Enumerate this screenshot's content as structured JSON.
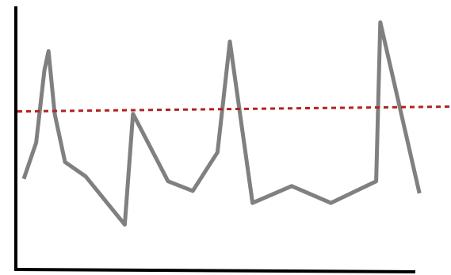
{
  "chart_data": {
    "type": "line",
    "title": "",
    "xlabel": "",
    "ylabel": "",
    "grid": false,
    "legend": "none",
    "series": [
      {
        "values": [
          [
            0.0,
            0.33
          ],
          [
            0.3,
            0.48
          ],
          [
            0.5,
            0.78
          ],
          [
            0.6,
            0.86
          ],
          [
            0.75,
            0.6
          ],
          [
            1.0,
            0.4
          ],
          [
            1.5,
            0.34
          ],
          [
            2.45,
            0.14
          ],
          [
            2.65,
            0.6
          ],
          [
            3.5,
            0.32
          ],
          [
            4.1,
            0.28
          ],
          [
            4.7,
            0.44
          ],
          [
            5.0,
            0.9
          ],
          [
            5.55,
            0.23
          ],
          [
            6.5,
            0.3
          ],
          [
            7.45,
            0.23
          ],
          [
            8.55,
            0.32
          ],
          [
            8.65,
            0.98
          ],
          [
            9.6,
            0.27
          ]
        ],
        "color": "#808080"
      }
    ],
    "reference_line": {
      "style": "dotted",
      "color": "#b22222",
      "y_start": 0.61,
      "y_end": 0.63
    },
    "xlim": [
      0,
      10
    ],
    "ylim": [
      0,
      1
    ]
  }
}
